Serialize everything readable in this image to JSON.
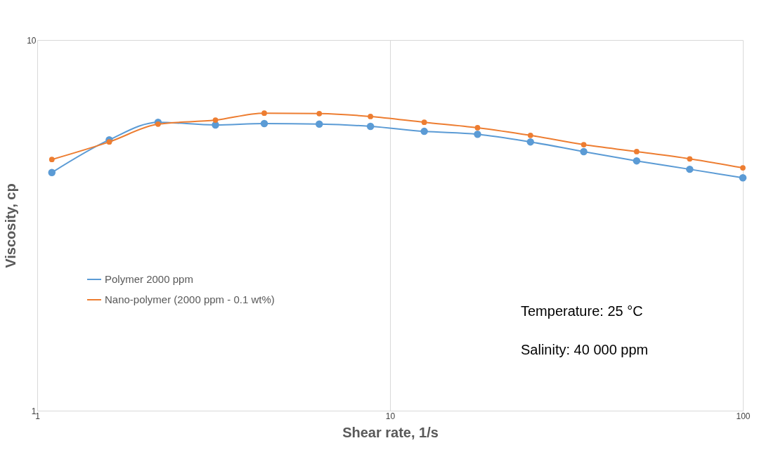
{
  "chart_data": {
    "type": "line",
    "xlabel": "Shear rate, 1/s",
    "ylabel": "Viscosity, cp",
    "x": [
      1.1,
      1.6,
      2.2,
      3.2,
      4.4,
      6.3,
      8.8,
      12.5,
      17.7,
      25,
      35.4,
      50,
      70.7,
      100
    ],
    "series": [
      {
        "name": "Polymer 2000 ppm",
        "color": "#5b9bd5",
        "values": [
          4.39,
          5.38,
          6.0,
          5.9,
          5.95,
          5.93,
          5.85,
          5.67,
          5.57,
          5.31,
          5.0,
          4.72,
          4.48,
          4.25
        ]
      },
      {
        "name": "Nano-polymer (2000 ppm - 0.1 wt%)",
        "color": "#ed7d31",
        "values": [
          4.76,
          5.31,
          5.93,
          6.08,
          6.35,
          6.33,
          6.22,
          6.0,
          5.8,
          5.53,
          5.22,
          5.0,
          4.78,
          4.52
        ]
      }
    ],
    "xlim": [
      1,
      100
    ],
    "xticks": [
      1,
      10,
      100
    ],
    "ylim": [
      1,
      10
    ],
    "yticks": [
      1,
      10
    ],
    "log": "xy",
    "grid": true,
    "legend": "left",
    "marker": "circle",
    "line_style": "solid",
    "annotations": [
      "Temperature: 25 °C",
      "Salinity: 40 000 ppm"
    ]
  }
}
